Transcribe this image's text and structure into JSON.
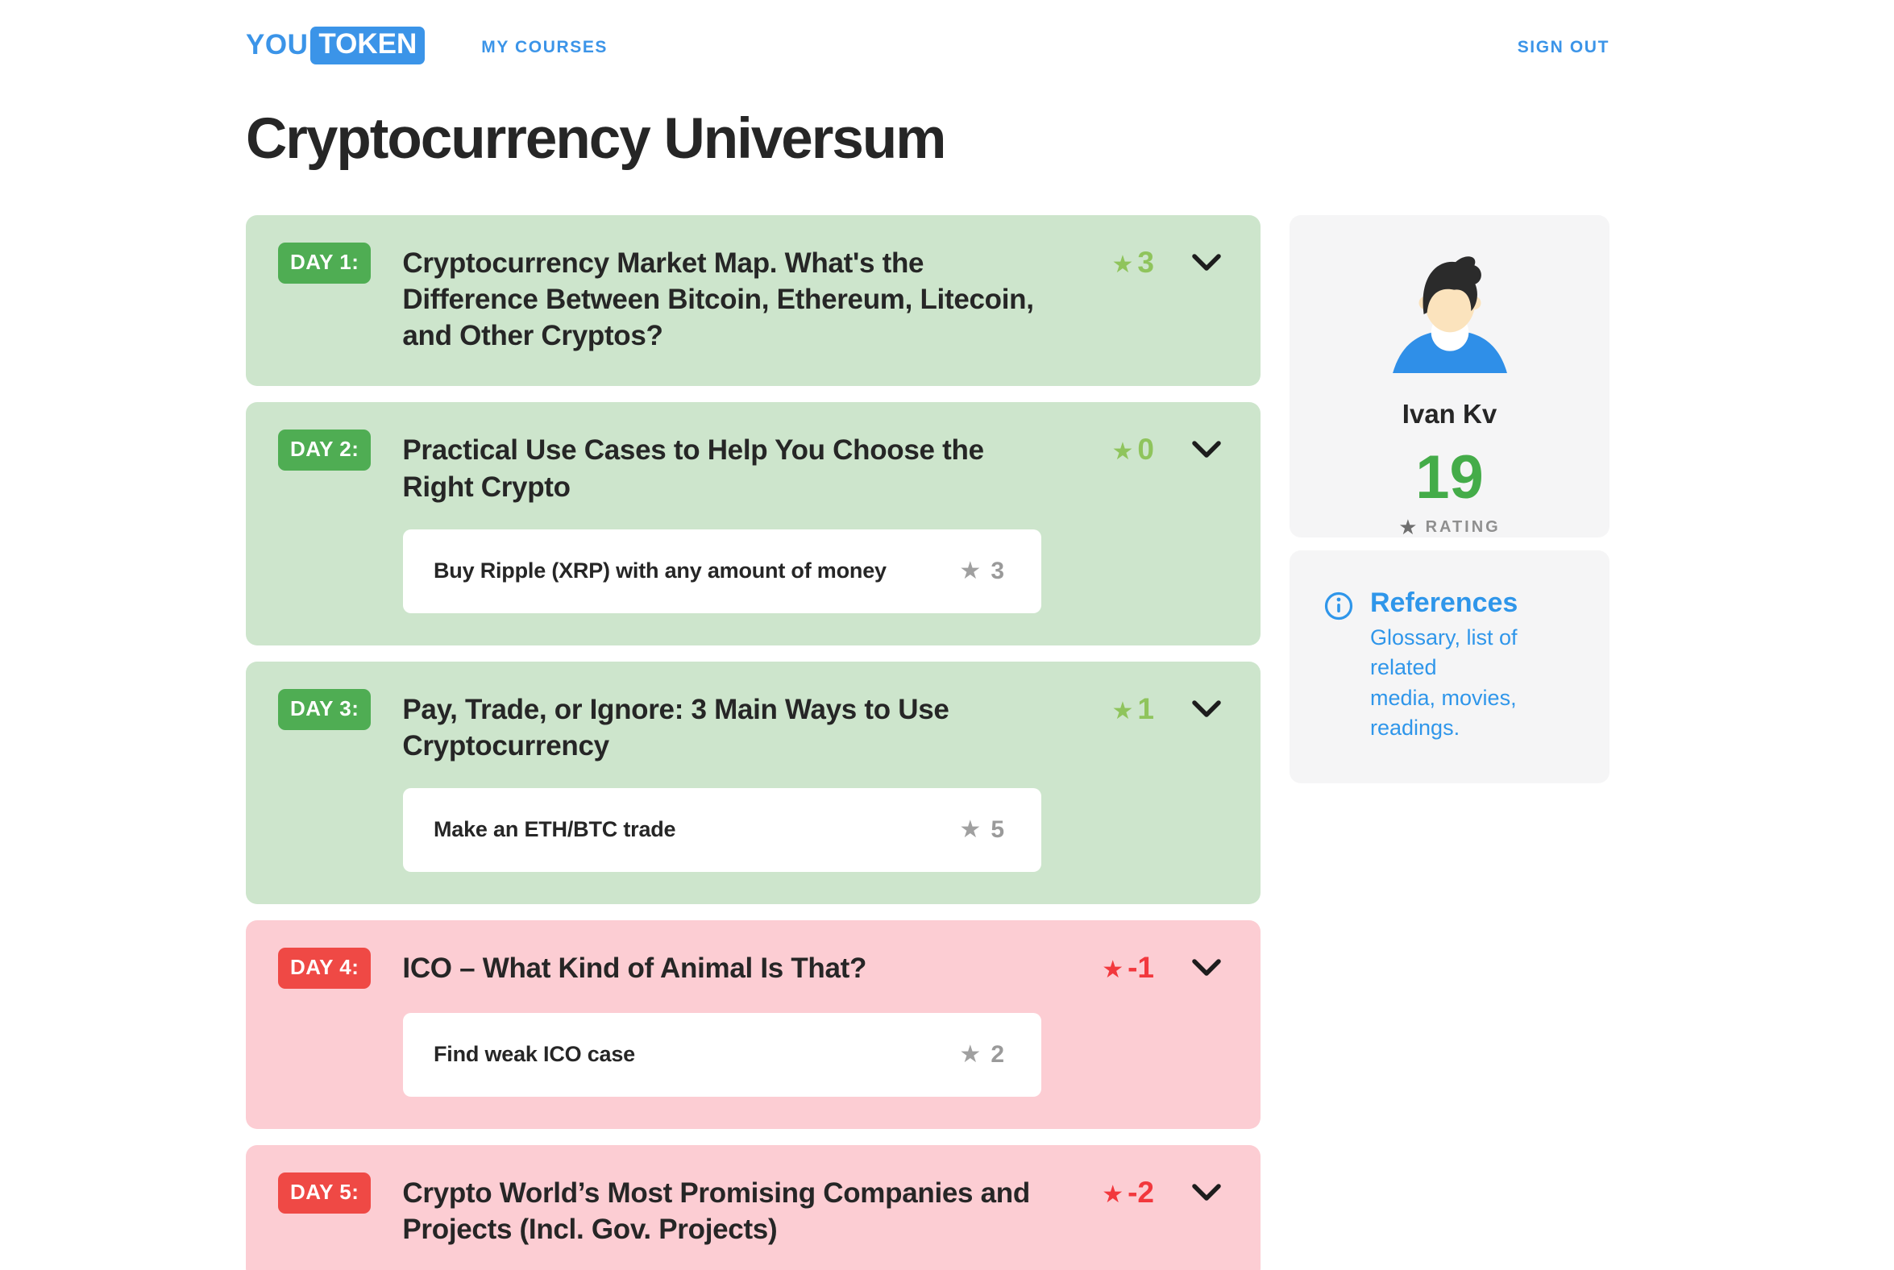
{
  "colors": {
    "accent_blue": "#3b94e8",
    "green_card_bg": "#cde5cc",
    "green_badge": "#4fad53",
    "green_star": "#8fc45c",
    "pink_card_bg": "#fccdd3",
    "red_badge": "#ef4945",
    "red_star": "#f2383d",
    "text_dark": "#262626",
    "sidebar_card_bg": "#f5f5f6",
    "task_star_gray": "#a0a0a0",
    "rating_green": "#44ac49",
    "references_blue": "#2f96ea"
  },
  "icons": {
    "star": "★"
  },
  "header": {
    "logo_you": "YOU",
    "logo_token": "TOKEN",
    "my_courses": "MY COURSES",
    "sign_out": "SIGN OUT"
  },
  "page_title": "Cryptocurrency Universum",
  "days": [
    {
      "badge": "DAY 1:",
      "title": "Cryptocurrency Market Map. What's the\nDifference Between Bitcoin, Ethereum, Litecoin,\nand Other Cryptos?",
      "score": "3",
      "tone": "green",
      "tasks": []
    },
    {
      "badge": "DAY 2:",
      "title": "Practical Use Cases to Help You Choose the\nRight Crypto",
      "score": "0",
      "tone": "green",
      "tasks": [
        {
          "label": "Buy Ripple (XRP) with any amount of money",
          "stars": "3"
        }
      ]
    },
    {
      "badge": "DAY 3:",
      "title": "Pay, Trade, or Ignore: 3 Main Ways to Use\nCryptocurrency",
      "score": "1",
      "tone": "green",
      "tasks": [
        {
          "label": "Make an ETH/BTC trade",
          "stars": "5"
        }
      ]
    },
    {
      "badge": "DAY 4:",
      "title": "ICO – What Kind of Animal Is That?",
      "score": "-1",
      "tone": "red",
      "tasks": [
        {
          "label": "Find weak ICO case",
          "stars": "2"
        }
      ]
    },
    {
      "badge": "DAY 5:",
      "title": "Crypto World’s Most Promising Companies and\nProjects (Incl. Gov. Projects)",
      "score": "-2",
      "tone": "red",
      "tasks": []
    }
  ],
  "profile": {
    "name": "Ivan Kv",
    "rating": "19",
    "rating_label": "RATING"
  },
  "references": {
    "title": "References",
    "subtitle": "Glossary, list of related\nmedia, movies, readings."
  }
}
